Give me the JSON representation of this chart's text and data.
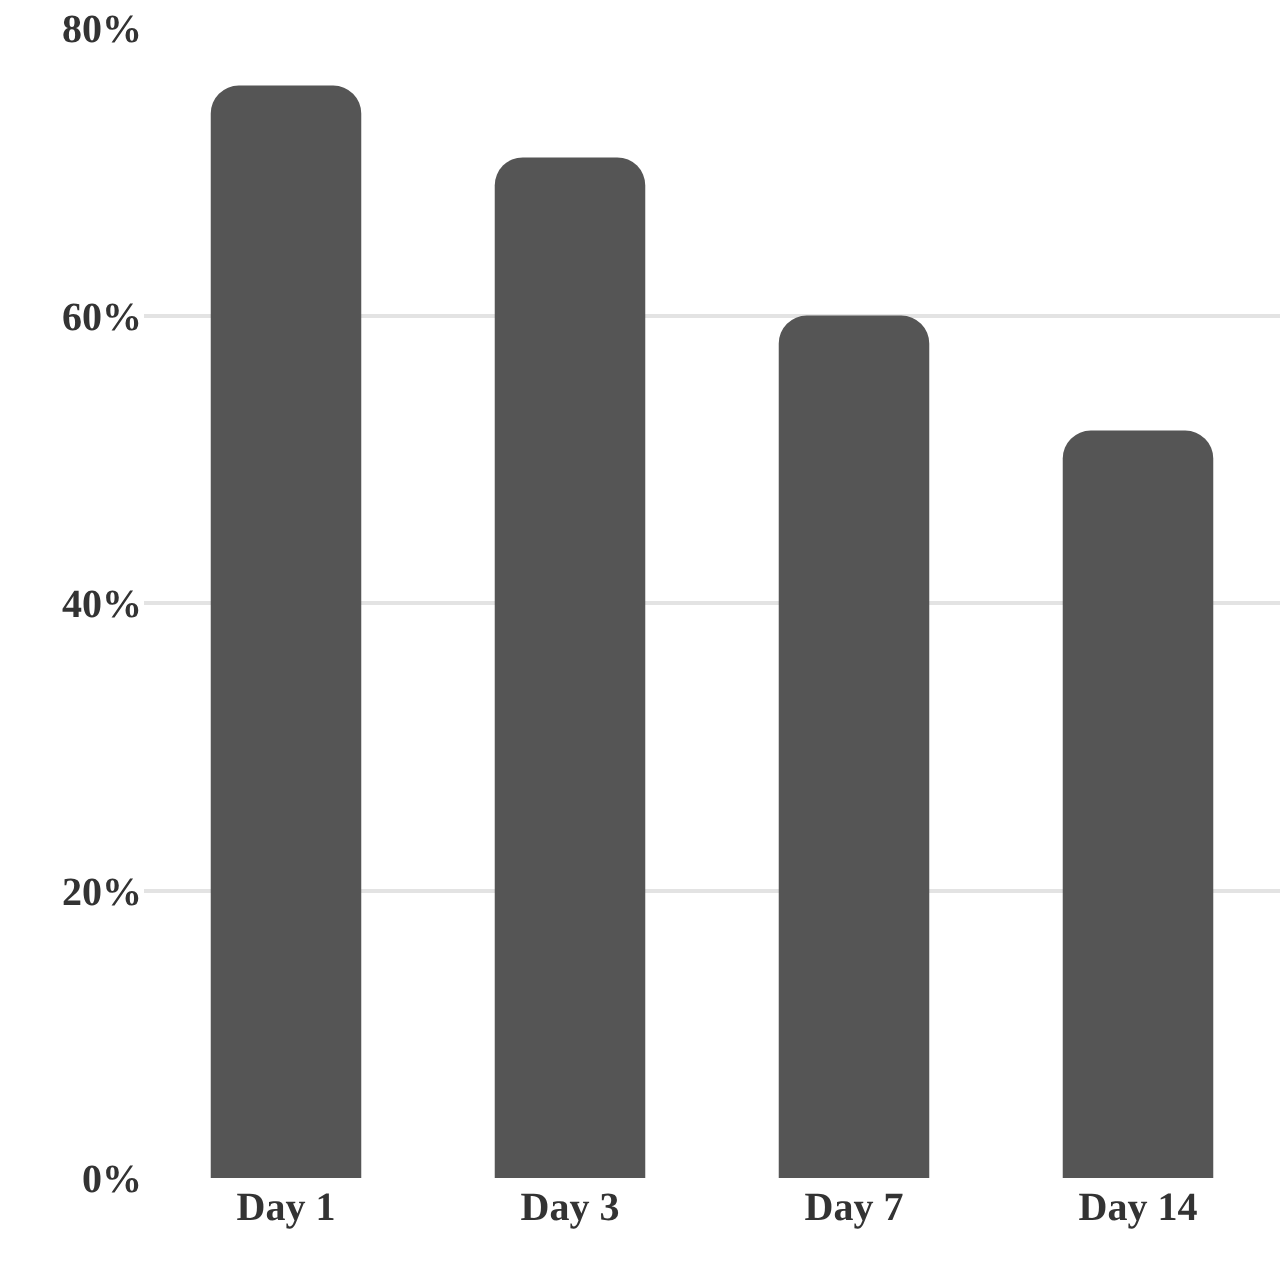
{
  "chart_data": {
    "type": "bar",
    "categories": [
      "Day 1",
      "Day 3",
      "Day 7",
      "Day 14"
    ],
    "values": [
      76,
      71,
      60,
      52
    ],
    "color": "#555555",
    "ylim": [
      0,
      80
    ],
    "yticks": [
      {
        "value": 0,
        "label": "0%"
      },
      {
        "value": 20,
        "label": "20%"
      },
      {
        "value": 40,
        "label": "40%"
      },
      {
        "value": 60,
        "label": "60%"
      },
      {
        "value": 80,
        "label": "80%"
      }
    ],
    "grid": "y"
  }
}
